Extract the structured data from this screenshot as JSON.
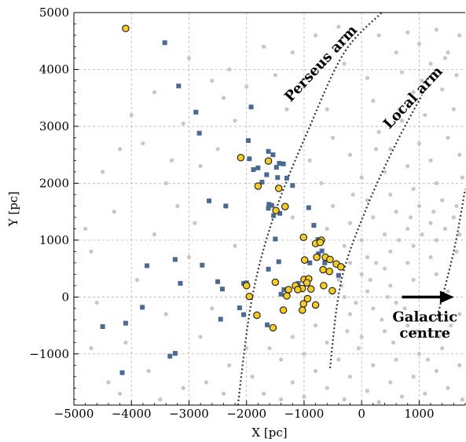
{
  "chart_data": {
    "type": "scatter",
    "title": "",
    "xlabel": "X [pc]",
    "ylabel": "Y [pc]",
    "xlim": [
      -5000,
      1800
    ],
    "ylim": [
      -1900,
      5000
    ],
    "x_ticks": [
      -5000,
      -4000,
      -3000,
      -2000,
      -1000,
      0,
      1000
    ],
    "x_tick_labels": [
      "−5000",
      "−4000",
      "−3000",
      "−2000",
      "−1000",
      "0",
      "1000"
    ],
    "y_ticks": [
      -1000,
      0,
      1000,
      2000,
      3000,
      4000,
      5000
    ],
    "y_tick_labels": [
      "−1000",
      "0",
      "1000",
      "2000",
      "3000",
      "4000",
      "5000"
    ],
    "grid": true,
    "grid_style": "dashed",
    "colors": {
      "background_points": "#cdc4c6",
      "squares": "#4a6a96",
      "circles_fill": "#f5cc1f",
      "circles_edge": "#1a1a1a",
      "arms": "#333333",
      "arrow": "#000000"
    },
    "series": [
      {
        "marker": "circle",
        "points": [
          [
            -4100,
            4720
          ],
          [
            -2100,
            2450
          ],
          [
            -1620,
            2390
          ],
          [
            -1800,
            1950
          ],
          [
            -1440,
            1910
          ],
          [
            -1330,
            1590
          ],
          [
            -1490,
            1520
          ],
          [
            -1010,
            1050
          ],
          [
            -800,
            940
          ],
          [
            -700,
            1000
          ],
          [
            -720,
            960
          ],
          [
            -990,
            650
          ],
          [
            -780,
            700
          ],
          [
            -630,
            700
          ],
          [
            -550,
            660
          ],
          [
            -440,
            580
          ],
          [
            -360,
            530
          ],
          [
            -670,
            480
          ],
          [
            -560,
            450
          ],
          [
            -1000,
            310
          ],
          [
            -920,
            320
          ],
          [
            -950,
            250
          ],
          [
            -1150,
            200
          ],
          [
            -1030,
            150
          ],
          [
            -1110,
            130
          ],
          [
            -880,
            140
          ],
          [
            -1270,
            130
          ],
          [
            -1500,
            260
          ],
          [
            -2000,
            200
          ],
          [
            -1950,
            10
          ],
          [
            -1300,
            20
          ],
          [
            -940,
            -30
          ],
          [
            -660,
            200
          ],
          [
            -510,
            110
          ],
          [
            -800,
            -140
          ],
          [
            -1010,
            -120
          ],
          [
            -1030,
            -230
          ],
          [
            -1360,
            -230
          ],
          [
            -1820,
            -320
          ],
          [
            -1540,
            -540
          ]
        ]
      },
      {
        "marker": "square",
        "points": [
          [
            -3420,
            4470
          ],
          [
            -3180,
            3710
          ],
          [
            -2880,
            3250
          ],
          [
            -2820,
            2880
          ],
          [
            -1920,
            3340
          ],
          [
            -1970,
            2750
          ],
          [
            -1950,
            2430
          ],
          [
            -1880,
            2240
          ],
          [
            -1800,
            2270
          ],
          [
            -1730,
            2020
          ],
          [
            -1650,
            2150
          ],
          [
            -1620,
            2560
          ],
          [
            -1540,
            2500
          ],
          [
            -1480,
            2280
          ],
          [
            -1430,
            2350
          ],
          [
            -1460,
            2100
          ],
          [
            -1360,
            2340
          ],
          [
            -1300,
            2090
          ],
          [
            -1200,
            1960
          ],
          [
            -1610,
            1630
          ],
          [
            -1620,
            1560
          ],
          [
            -1530,
            1430
          ],
          [
            -1560,
            1610
          ],
          [
            -1420,
            1470
          ],
          [
            -1500,
            1020
          ],
          [
            -920,
            1570
          ],
          [
            -830,
            1260
          ],
          [
            -760,
            1010
          ],
          [
            -750,
            760
          ],
          [
            -690,
            810
          ],
          [
            -900,
            600
          ],
          [
            -640,
            600
          ],
          [
            -400,
            380
          ],
          [
            -1620,
            490
          ],
          [
            -1440,
            620
          ],
          [
            -1100,
            240
          ],
          [
            -1350,
            130
          ],
          [
            -1400,
            50
          ],
          [
            -2050,
            240
          ],
          [
            -2000,
            250
          ],
          [
            -2500,
            270
          ],
          [
            -2420,
            140
          ],
          [
            -2650,
            1690
          ],
          [
            -2360,
            1600
          ],
          [
            -2770,
            560
          ],
          [
            -3730,
            550
          ],
          [
            -3240,
            660
          ],
          [
            -3150,
            240
          ],
          [
            -3810,
            -180
          ],
          [
            -2450,
            -390
          ],
          [
            -2120,
            -190
          ],
          [
            -2050,
            -310
          ],
          [
            -1640,
            -490
          ],
          [
            -4100,
            -460
          ],
          [
            -4500,
            -520
          ],
          [
            -3330,
            -1040
          ],
          [
            -3240,
            -990
          ],
          [
            -4160,
            -1330
          ]
        ]
      },
      {
        "marker": "dot",
        "points": [
          [
            -3000,
            4200
          ],
          [
            -2300,
            4000
          ],
          [
            -1700,
            4400
          ],
          [
            -1200,
            4300
          ],
          [
            -800,
            4600
          ],
          [
            -400,
            4750
          ],
          [
            300,
            4600
          ],
          [
            800,
            4650
          ],
          [
            1300,
            4700
          ],
          [
            1700,
            4600
          ],
          [
            -2600,
            3800
          ],
          [
            -1500,
            3900
          ],
          [
            -300,
            4100
          ],
          [
            600,
            4300
          ],
          [
            1000,
            4450
          ],
          [
            1500,
            4300
          ],
          [
            -3600,
            3600
          ],
          [
            -2400,
            3500
          ],
          [
            -1000,
            3700
          ],
          [
            100,
            3850
          ],
          [
            700,
            3950
          ],
          [
            1200,
            4100
          ],
          [
            1650,
            3900
          ],
          [
            -4000,
            3200
          ],
          [
            -3100,
            3050
          ],
          [
            -2200,
            3100
          ],
          [
            -600,
            3300
          ],
          [
            200,
            3450
          ],
          [
            900,
            3600
          ],
          [
            1400,
            3650
          ],
          [
            -4500,
            2200
          ],
          [
            -3800,
            2700
          ],
          [
            -2500,
            2600
          ],
          [
            -500,
            2800
          ],
          [
            300,
            2900
          ],
          [
            700,
            3100
          ],
          [
            1100,
            3200
          ],
          [
            1600,
            3300
          ],
          [
            -3400,
            2000
          ],
          [
            -2800,
            2300
          ],
          [
            -900,
            2400
          ],
          [
            -200,
            2500
          ],
          [
            500,
            2600
          ],
          [
            1000,
            2700
          ],
          [
            1500,
            2800
          ],
          [
            -4300,
            1500
          ],
          [
            -3200,
            1600
          ],
          [
            -700,
            2000
          ],
          [
            0,
            2100
          ],
          [
            400,
            2200
          ],
          [
            800,
            2300
          ],
          [
            1200,
            2400
          ],
          [
            1700,
            2500
          ],
          [
            -4700,
            800
          ],
          [
            -3600,
            1100
          ],
          [
            -2900,
            1300
          ],
          [
            -1200,
            1400
          ],
          [
            -500,
            1600
          ],
          [
            100,
            1700
          ],
          [
            500,
            1800
          ],
          [
            900,
            1900
          ],
          [
            1300,
            2000
          ],
          [
            1750,
            2100
          ],
          [
            -3900,
            300
          ],
          [
            -3000,
            700
          ],
          [
            -2200,
            900
          ],
          [
            -600,
            1200
          ],
          [
            -200,
            1300
          ],
          [
            200,
            1400
          ],
          [
            600,
            1500
          ],
          [
            1000,
            1600
          ],
          [
            1400,
            1700
          ],
          [
            -4600,
            -100
          ],
          [
            -3400,
            -300
          ],
          [
            -2600,
            -200
          ],
          [
            -300,
            900
          ],
          [
            0,
            1000
          ],
          [
            400,
            1100
          ],
          [
            800,
            1200
          ],
          [
            1200,
            1300
          ],
          [
            1600,
            1400
          ],
          [
            -4100,
            -800
          ],
          [
            -3700,
            -1300
          ],
          [
            -2800,
            -700
          ],
          [
            -200,
            600
          ],
          [
            100,
            700
          ],
          [
            500,
            800
          ],
          [
            900,
            900
          ],
          [
            1300,
            1000
          ],
          [
            1700,
            1100
          ],
          [
            -4400,
            -1500
          ],
          [
            -3100,
            -1600
          ],
          [
            -2300,
            -1200
          ],
          [
            -400,
            300
          ],
          [
            0,
            400
          ],
          [
            400,
            500
          ],
          [
            800,
            600
          ],
          [
            1200,
            700
          ],
          [
            1650,
            800
          ],
          [
            -3500,
            -1800
          ],
          [
            -2700,
            -1500
          ],
          [
            -1600,
            -900
          ],
          [
            -1200,
            -700
          ],
          [
            -800,
            -500
          ],
          [
            -300,
            0
          ],
          [
            100,
            100
          ],
          [
            500,
            200
          ],
          [
            900,
            300
          ],
          [
            1300,
            400
          ],
          [
            -1900,
            -1400
          ],
          [
            -1400,
            -1100
          ],
          [
            -1000,
            -1000
          ],
          [
            -600,
            -800
          ],
          [
            -200,
            -300
          ],
          [
            200,
            -200
          ],
          [
            600,
            -100
          ],
          [
            1000,
            0
          ],
          [
            1500,
            100
          ],
          [
            -1700,
            -1700
          ],
          [
            -1200,
            -1500
          ],
          [
            -800,
            -1300
          ],
          [
            -400,
            -1100
          ],
          [
            0,
            -700
          ],
          [
            400,
            -600
          ],
          [
            800,
            -500
          ],
          [
            1200,
            -400
          ],
          [
            1700,
            -300
          ],
          [
            -1000,
            -1750
          ],
          [
            -600,
            -1600
          ],
          [
            -200,
            -1400
          ],
          [
            200,
            -1200
          ],
          [
            600,
            -1100
          ],
          [
            1000,
            -1000
          ],
          [
            1400,
            -900
          ],
          [
            -300,
            -1800
          ],
          [
            100,
            -1650
          ],
          [
            500,
            -1500
          ],
          [
            900,
            -1400
          ],
          [
            1300,
            -1300
          ],
          [
            1700,
            -1200
          ],
          [
            300,
            -1850
          ],
          [
            700,
            -1750
          ],
          [
            1100,
            -1700
          ],
          [
            1500,
            -1600
          ],
          [
            1750,
            -1800
          ],
          [
            -150,
            1800
          ],
          [
            250,
            2600
          ],
          [
            650,
            3300
          ],
          [
            1050,
            3800
          ],
          [
            1450,
            4200
          ],
          [
            -350,
            200
          ],
          [
            -100,
            -100
          ],
          [
            150,
            300
          ],
          [
            350,
            -400
          ],
          [
            550,
            -800
          ],
          [
            750,
            -200
          ],
          [
            950,
            -600
          ],
          [
            1150,
            -1100
          ],
          [
            1350,
            -700
          ],
          [
            1550,
            -500
          ],
          [
            -50,
            -900
          ],
          [
            -250,
            -600
          ],
          [
            450,
            0
          ],
          [
            250,
            600
          ],
          [
            650,
            1000
          ],
          [
            850,
            1400
          ],
          [
            1050,
            1100
          ],
          [
            1250,
            1500
          ],
          [
            1450,
            1200
          ],
          [
            1650,
            1600
          ],
          [
            -1300,
            3300
          ],
          [
            -2000,
            3700
          ],
          [
            -3300,
            2400
          ],
          [
            -4200,
            2600
          ],
          [
            -4800,
            1200
          ],
          [
            -4700,
            -900
          ],
          [
            -4200,
            -1700
          ],
          [
            -2400,
            -1700
          ],
          [
            -1400,
            -1800
          ],
          [
            -2000,
            -900
          ]
        ]
      }
    ],
    "arm_curves": [
      {
        "name": "Perseus arm",
        "points": [
          [
            -2150,
            -1900
          ],
          [
            -1900,
            0
          ],
          [
            -1500,
            1500
          ],
          [
            -900,
            3000
          ],
          [
            -300,
            4300
          ],
          [
            350,
            5000
          ]
        ]
      },
      {
        "name": "Local arm",
        "points": [
          [
            -550,
            -1250
          ],
          [
            -350,
            300
          ],
          [
            100,
            1600
          ],
          [
            600,
            2700
          ],
          [
            1050,
            3550
          ]
        ]
      },
      {
        "name": "",
        "points": [
          [
            1300,
            -400
          ],
          [
            1600,
            800
          ],
          [
            1800,
            1900
          ]
        ]
      }
    ],
    "annotations": [
      {
        "text": "Perseus arm",
        "x": -650,
        "y": 4050,
        "rotation": -47
      },
      {
        "text": "Local arm",
        "x": 950,
        "y": 3450,
        "rotation": -47
      },
      {
        "text": "Galactic",
        "x": 1100,
        "y": -430
      },
      {
        "text": "centre",
        "x": 1100,
        "y": -710
      }
    ],
    "arrow": {
      "from": [
        700,
        0
      ],
      "to": [
        1580,
        0
      ]
    }
  }
}
